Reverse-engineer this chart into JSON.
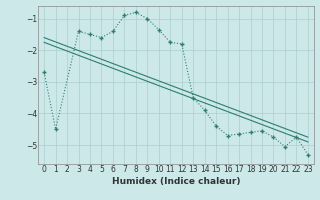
{
  "xlabel": "Humidex (Indice chaleur)",
  "ylabel": "",
  "bg_color": "#cce8e8",
  "grid_color": "#b0d8d8",
  "line_color": "#2e7d72",
  "xlim": [
    -0.5,
    23.5
  ],
  "ylim": [
    -5.6,
    -0.6
  ],
  "yticks": [
    -5,
    -4,
    -3,
    -2,
    -1
  ],
  "xticks": [
    0,
    1,
    2,
    3,
    4,
    5,
    6,
    7,
    8,
    9,
    10,
    11,
    12,
    13,
    14,
    15,
    16,
    17,
    18,
    19,
    20,
    21,
    22,
    23
  ],
  "series1_x": [
    0,
    1,
    3,
    4,
    5,
    6,
    7,
    8,
    9,
    10,
    11,
    12,
    13,
    14,
    15,
    16,
    17,
    18,
    19,
    20,
    21,
    22,
    23
  ],
  "series1_y": [
    -2.7,
    -4.5,
    -1.4,
    -1.5,
    -1.6,
    -1.4,
    -0.9,
    -0.8,
    -1.0,
    -1.35,
    -1.75,
    -1.8,
    -3.5,
    -3.9,
    -4.4,
    -4.7,
    -4.65,
    -4.6,
    -4.55,
    -4.75,
    -5.05,
    -4.75,
    -5.3
  ],
  "series2_x": [
    0,
    23
  ],
  "series2_y": [
    -1.6,
    -4.75
  ],
  "series3_x": [
    0,
    23
  ],
  "series3_y": [
    -1.75,
    -4.9
  ],
  "figsize": [
    3.2,
    2.0
  ],
  "dpi": 100
}
